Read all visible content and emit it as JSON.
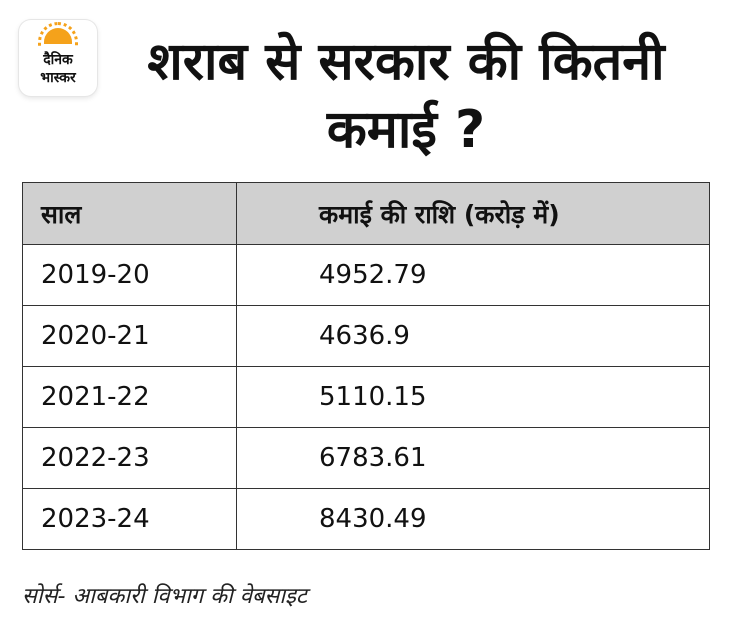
{
  "logo": {
    "line1": "दैनिक",
    "line2": "भास्कर"
  },
  "title": "शराब से सरकार की कितनी कमाई ?",
  "chart_data": {
    "type": "table",
    "columns": [
      "साल",
      "कमाई की राशि (करोड़ में)"
    ],
    "rows": [
      [
        "2019-20",
        "4952.79"
      ],
      [
        "2020-21",
        "4636.9"
      ],
      [
        "2021-22",
        "5110.15"
      ],
      [
        "2022-23",
        "6783.61"
      ],
      [
        "2023-24",
        "8430.49"
      ]
    ]
  },
  "source": "सोर्स- आबकारी विभाग की वेबसाइट",
  "colors": {
    "header_bg": "#d0d0d0",
    "logo_accent": "#f5a21b",
    "border": "#333333"
  }
}
